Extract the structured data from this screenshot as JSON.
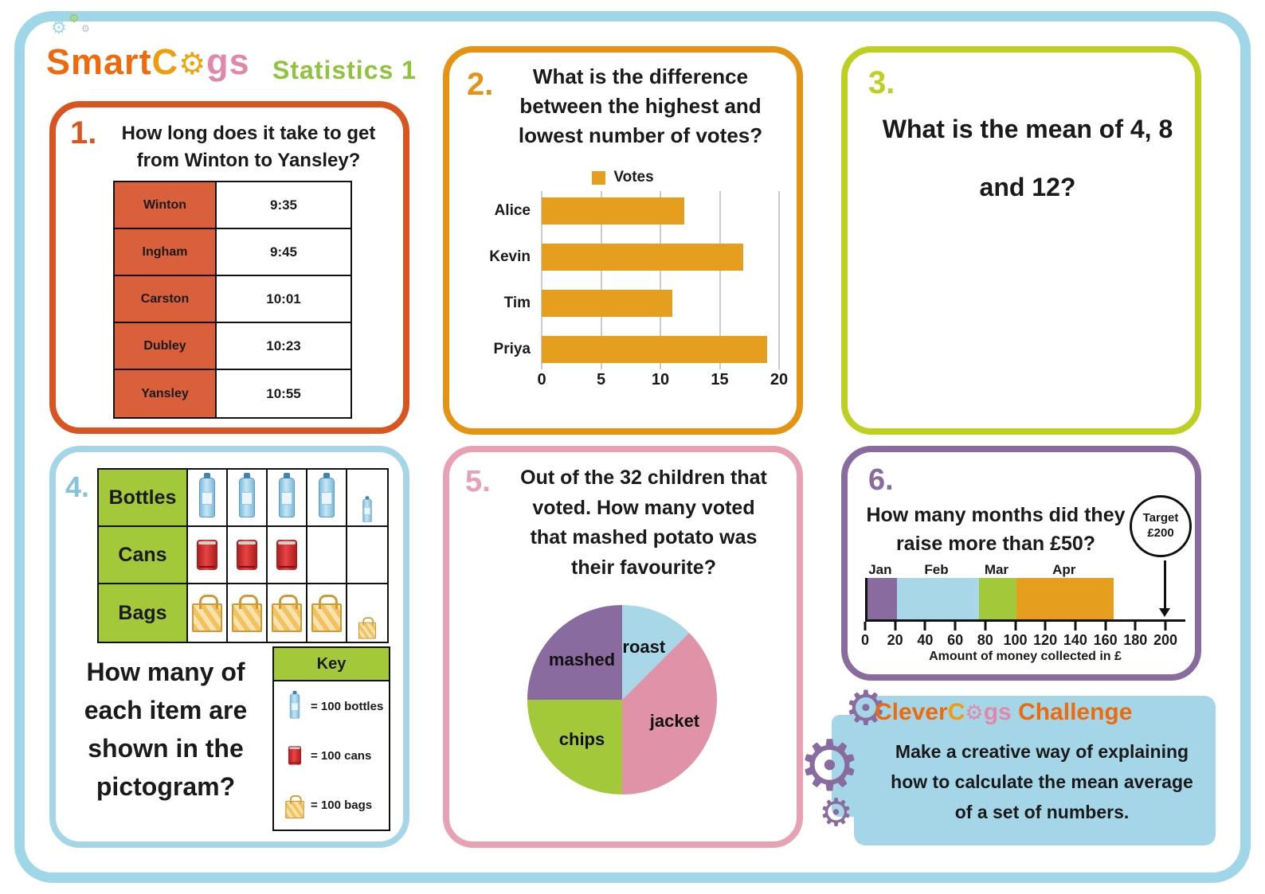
{
  "icons": {
    "gear": "⚙"
  },
  "header": {
    "logo": {
      "part_smart": "Smart",
      "part_c": "C",
      "part_gs": "gs",
      "full_text": "SmartCogs"
    },
    "subtitle": "Statistics 1"
  },
  "q1": {
    "number": "1.",
    "question": "How long does it take to get from Winton to Yansley?",
    "lines": [
      "How long does it take to get",
      "from Winton to Yansley?"
    ],
    "timetable": [
      {
        "station": "Winton",
        "time": "9:35"
      },
      {
        "station": "Ingham",
        "time": "9:45"
      },
      {
        "station": "Carston",
        "time": "10:01"
      },
      {
        "station": "Dubley",
        "time": "10:23"
      },
      {
        "station": "Yansley",
        "time": "10:55"
      }
    ]
  },
  "q2": {
    "number": "2.",
    "question": "What is the difference between the highest and lowest number of votes?",
    "lines": [
      "What is the difference",
      "between the highest and",
      "lowest number of votes?"
    ],
    "chart_data": {
      "type": "bar",
      "orientation": "horizontal",
      "legend": "Votes",
      "categories": [
        "Alice",
        "Kevin",
        "Tim",
        "Priya"
      ],
      "values": [
        12,
        17,
        11,
        19
      ],
      "xticks": [
        0,
        5,
        10,
        15,
        20
      ],
      "xlim": [
        0,
        20
      ],
      "bar_color": "#e59e1d"
    }
  },
  "q3": {
    "number": "3.",
    "question": "What is the mean of 4, 8 and 12?",
    "lines": [
      "What is the mean of 4, 8",
      "and 12?"
    ]
  },
  "q4": {
    "number": "4.",
    "question": "How many of each item are shown in the pictogram?",
    "lines": [
      "How many of",
      "each item are",
      "shown in the",
      "pictogram?"
    ],
    "pictogram": {
      "columns": 5,
      "rows": [
        {
          "label": "Bottles",
          "icon": "bottle-icon",
          "cells": [
            1,
            1,
            1,
            1,
            0.5
          ]
        },
        {
          "label": "Cans",
          "icon": "can-icon",
          "cells": [
            1,
            1,
            1,
            0,
            0
          ]
        },
        {
          "label": "Bags",
          "icon": "bag-icon",
          "cells": [
            1,
            1,
            1,
            1,
            0.5
          ]
        }
      ]
    },
    "key": {
      "title": "Key",
      "items": [
        {
          "icon": "bottle-icon",
          "label": "= 100 bottles"
        },
        {
          "icon": "can-icon",
          "label": "= 100 cans"
        },
        {
          "icon": "bag-icon",
          "label": "= 100 bags"
        }
      ]
    }
  },
  "q5": {
    "number": "5.",
    "question": "Out of the 32 children that voted. How many voted that mashed potato was their favourite?",
    "lines": [
      "Out of the 32 children that",
      "voted. How many voted",
      "that mashed potato was",
      "their favourite?"
    ],
    "chart_data": {
      "type": "pie",
      "total": 32,
      "slices": [
        {
          "label": "roast",
          "fraction": 0.125,
          "color": "#a8d8e8"
        },
        {
          "label": "jacket",
          "fraction": 0.375,
          "color": "#df92a8"
        },
        {
          "label": "chips",
          "fraction": 0.25,
          "color": "#a3c93a"
        },
        {
          "label": "mashed",
          "fraction": 0.25,
          "color": "#8a6ba0"
        }
      ]
    }
  },
  "q6": {
    "number": "6.",
    "question": "How many months did they raise more than £50?",
    "lines": [
      "How many months did they",
      "raise more than £50?"
    ],
    "target": {
      "line1": "Target",
      "line2": "£200"
    },
    "chart_data": {
      "type": "stacked-bar",
      "xlabel": "Amount of money collected in £",
      "xticks": [
        0,
        20,
        40,
        60,
        80,
        100,
        120,
        140,
        160,
        180,
        200
      ],
      "xlim": [
        0,
        200
      ],
      "segments": [
        {
          "label": "Jan",
          "start": 0,
          "end": 20,
          "color": "#8a6ba0"
        },
        {
          "label": "Feb",
          "start": 20,
          "end": 75,
          "color": "#a8d8e8"
        },
        {
          "label": "Mar",
          "start": 75,
          "end": 100,
          "color": "#a3c93a"
        },
        {
          "label": "Apr",
          "start": 100,
          "end": 165,
          "color": "#e59e1d"
        }
      ]
    }
  },
  "challenge": {
    "title": {
      "part_clever": "Clever",
      "part_c": "C",
      "part_gs": "gs",
      "part_challenge": " Challenge",
      "full_text": "CleverCogs Challenge"
    },
    "text": "Make a creative way of explaining how to calculate the mean average of a set of numbers.",
    "lines": [
      "Make a creative way of explaining",
      "how to calculate the mean average",
      "of a set of numbers."
    ]
  }
}
